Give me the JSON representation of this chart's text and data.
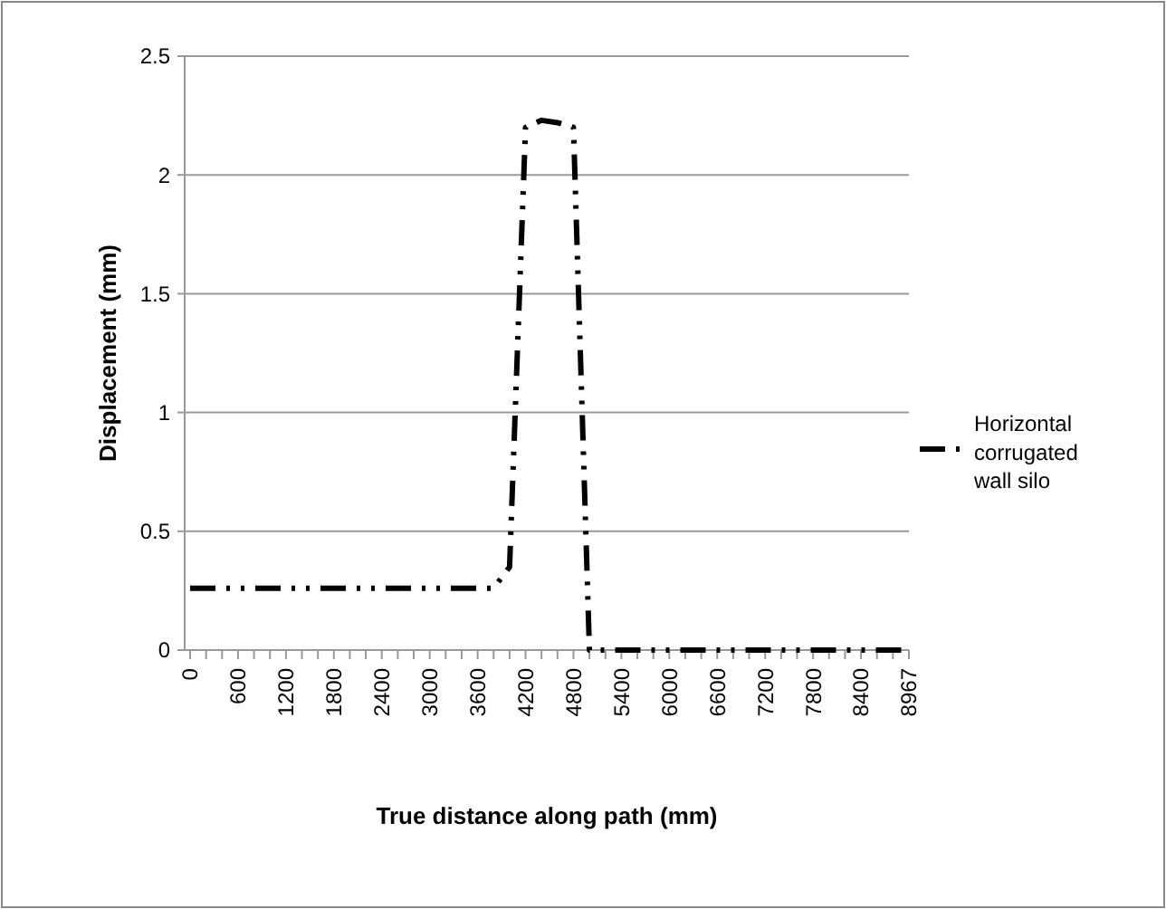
{
  "chart_data": {
    "type": "line",
    "xlabel": "True distance along path (mm)",
    "ylabel": "Displacement (mm)",
    "categories": [
      "0",
      null,
      null,
      "600",
      null,
      null,
      "1200",
      null,
      null,
      "1800",
      null,
      null,
      "2400",
      null,
      null,
      "3000",
      null,
      null,
      "3600",
      null,
      null,
      "4200",
      null,
      null,
      "4800",
      null,
      null,
      "5400",
      null,
      null,
      "6000",
      null,
      null,
      "6600",
      null,
      null,
      "7200",
      null,
      null,
      "7800",
      null,
      null,
      "8400",
      null,
      null,
      "8967"
    ],
    "series": [
      {
        "name": "Horizontal corrugated wall silo",
        "color": "#000000",
        "values": [
          0.26,
          0.26,
          0.26,
          0.26,
          0.26,
          0.26,
          0.26,
          0.26,
          0.26,
          0.26,
          0.26,
          0.26,
          0.26,
          0.26,
          0.26,
          0.26,
          0.26,
          0.26,
          0.26,
          0.26,
          0.35,
          2.2,
          2.23,
          2.22,
          2.2,
          0,
          0,
          0,
          0,
          0,
          0,
          0,
          0,
          0,
          0,
          0,
          0,
          0,
          0,
          0,
          0,
          0,
          0,
          0,
          0,
          0
        ]
      }
    ],
    "ylim": [
      0,
      2.5
    ],
    "yticks": [
      0,
      0.5,
      1,
      1.5,
      2,
      2.5
    ],
    "grid": "y",
    "legend": "right",
    "marker": "none",
    "line_style": "dashed"
  }
}
